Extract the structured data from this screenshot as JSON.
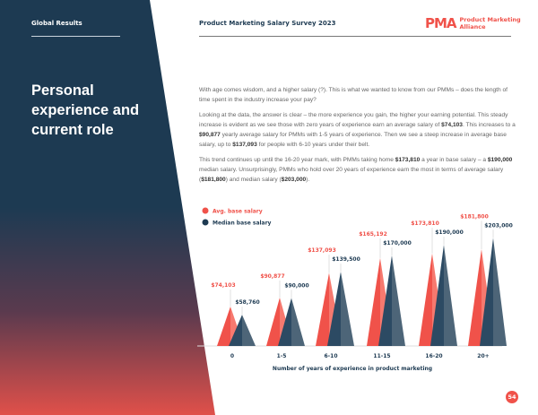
{
  "header": {
    "section": "Global Results",
    "report": "Product Marketing Salary Survey 2023",
    "logo_mark": "PMA",
    "logo_text_1": "Product Marketing",
    "logo_text_2": "Alliance"
  },
  "title": "Personal experience and current role",
  "body": {
    "p1": "With age comes wisdom, and a higher salary (?). This is what we wanted to know from our PMMs – does the length of time spent in the industry increase your pay?",
    "p2a": "Looking at the data, the answer is clear – the more experience you gain, the higher your earning potential. This steady increase is evident as we see those with zero years of experience earn an average salary of ",
    "p2b": "$74,103",
    "p2c": ". This increases to a ",
    "p2d": "$90,877",
    "p2e": " yearly average salary for PMMs with 1-5 years of experience. Then we see a steep increase in average base salary, up to ",
    "p2f": "$137,093",
    "p2g": " for people with 6-10 years under their belt.",
    "p3a": "This trend continues up until the 16-20 year mark, with PMMs taking home ",
    "p3b": "$173,810",
    "p3c": " a year in base salary – a ",
    "p3d": "$190,000",
    "p3e": " median salary. Unsurprisingly, PMMs who hold over 20 years of experience earn the most in terms of average salary (",
    "p3f": "$181,800",
    "p3g": ") and median salary (",
    "p3h": "$203,000",
    "p3i": ")."
  },
  "colors": {
    "navy": "#1d3a52",
    "red": "#f0524a"
  },
  "chart_data": {
    "type": "bar",
    "categories": [
      "0",
      "1-5",
      "6-10",
      "11-15",
      "16-20",
      "20+"
    ],
    "series": [
      {
        "name": "Avg. base salary",
        "values": [
          74103,
          90877,
          137093,
          165192,
          173810,
          181800
        ],
        "labels": [
          "$74,103",
          "$90,877",
          "$137,093",
          "$165,192",
          "$173,810",
          "$181,800"
        ],
        "color": "#f0524a"
      },
      {
        "name": "Median base salary",
        "values": [
          58760,
          90000,
          139500,
          170000,
          190000,
          203000
        ],
        "labels": [
          "$58,760",
          "$90,000",
          "$139,500",
          "$170,000",
          "$190,000",
          "$203,000"
        ],
        "color": "#1d3a52"
      }
    ],
    "xlabel": "Number of years of experience in product marketing",
    "ylim": [
      0,
      210000
    ],
    "legend": "top-left"
  },
  "page_number": "54"
}
